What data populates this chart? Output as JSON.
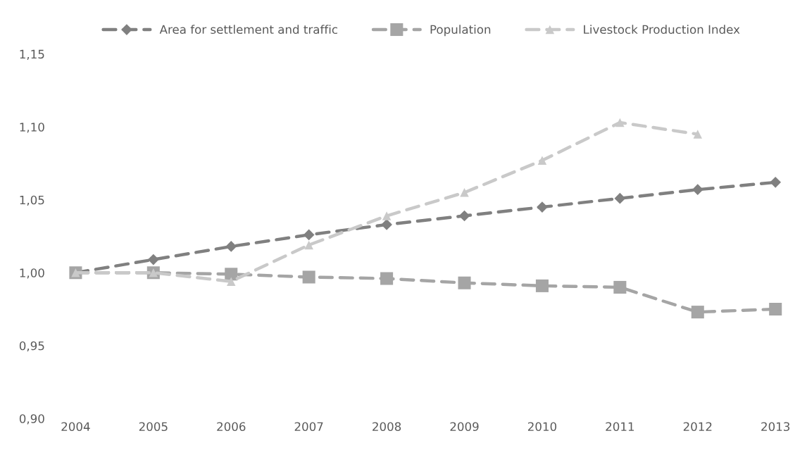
{
  "chart_data": {
    "type": "line",
    "categories": [
      "2004",
      "2005",
      "2006",
      "2007",
      "2008",
      "2009",
      "2010",
      "2011",
      "2012",
      "2013"
    ],
    "series": [
      {
        "name": "Area for settlement and traffic",
        "color": "#808080",
        "marker": "diamond",
        "line_style": "dashed",
        "values": [
          1.0,
          1.009,
          1.018,
          1.026,
          1.033,
          1.039,
          1.045,
          1.051,
          1.057,
          1.062
        ]
      },
      {
        "name": "Population",
        "color": "#a5a5a5",
        "marker": "square",
        "line_style": "dashed",
        "values": [
          1.0,
          1.0,
          0.999,
          0.997,
          0.996,
          0.993,
          0.991,
          0.99,
          0.973,
          0.975
        ]
      },
      {
        "name": "Livestock Production Index",
        "color": "#c9c9c9",
        "marker": "triangle",
        "line_style": "dashed",
        "values": [
          1.0,
          1.0,
          0.994,
          1.019,
          1.039,
          1.055,
          1.077,
          1.103,
          1.095,
          null
        ]
      }
    ],
    "ylim": [
      0.9,
      1.15
    ],
    "yticks": [
      {
        "value": 0.9,
        "label": "0,90"
      },
      {
        "value": 0.95,
        "label": "0,95"
      },
      {
        "value": 1.0,
        "label": "1,00"
      },
      {
        "value": 1.05,
        "label": "1,05"
      },
      {
        "value": 1.1,
        "label": "1,10"
      },
      {
        "value": 1.15,
        "label": "1,15"
      }
    ],
    "grid": false,
    "legend": "top"
  }
}
